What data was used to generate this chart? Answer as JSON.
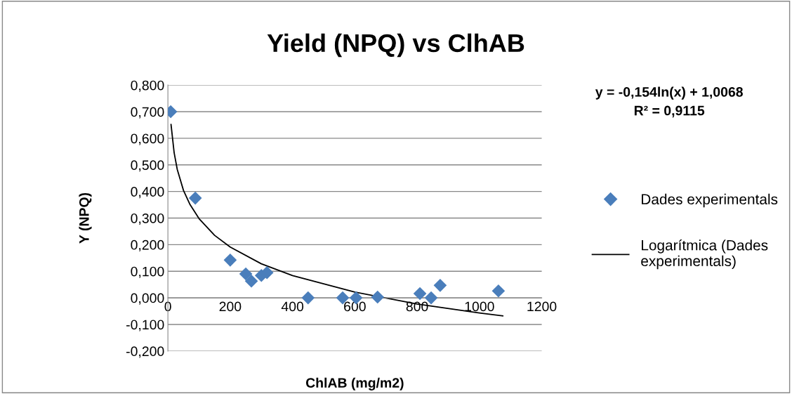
{
  "chart_data": {
    "type": "scatter",
    "title": "Yield (NPQ) vs ClhAB",
    "xlabel": "ChlAB (mg/m2)",
    "ylabel": "Y (NPQ)",
    "xlim": [
      0,
      1200
    ],
    "xticks": [
      0,
      200,
      400,
      600,
      800,
      1000,
      1200
    ],
    "ylim": [
      -0.2,
      0.8
    ],
    "yticks": [
      {
        "value": -0.2,
        "label": "-0,200"
      },
      {
        "value": -0.1,
        "label": "-0,100"
      },
      {
        "value": 0,
        "label": "0,000"
      },
      {
        "value": 0.1,
        "label": "0,100"
      },
      {
        "value": 0.2,
        "label": "0,200"
      },
      {
        "value": 0.3,
        "label": "0,300"
      },
      {
        "value": 0.4,
        "label": "0,400"
      },
      {
        "value": 0.5,
        "label": "0,500"
      },
      {
        "value": 0.6,
        "label": "0,600"
      },
      {
        "value": 0.7,
        "label": "0,700"
      },
      {
        "value": 0.8,
        "label": "0,800"
      }
    ],
    "grid": "y",
    "legend": "right",
    "annotations": [
      "y = -0,154ln(x) + 1,0068\nR² = 0,9115"
    ],
    "series": [
      {
        "name": "Dades experimentals",
        "marker": "diamond",
        "color": "#4a7ebb",
        "x": [
          9,
          88,
          200,
          250,
          268,
          300,
          318,
          450,
          561,
          604,
          673,
          809,
          845,
          874,
          1061
        ],
        "values": [
          0.7,
          0.375,
          0.142,
          0.09,
          0.063,
          0.084,
          0.095,
          0.0,
          0.0,
          0.0,
          0.003,
          0.016,
          0.0,
          0.047,
          0.026
        ]
      },
      {
        "name": "Logarítmica (Dades experimentals)",
        "type": "line",
        "color": "#000000",
        "x": [
          10,
          20,
          30,
          50,
          70,
          100,
          150,
          200,
          300,
          400,
          600,
          800,
          1000,
          1075
        ],
        "values": [
          0.652,
          0.546,
          0.483,
          0.404,
          0.353,
          0.298,
          0.235,
          0.191,
          0.128,
          0.084,
          0.022,
          -0.023,
          -0.057,
          -0.068
        ]
      }
    ]
  }
}
